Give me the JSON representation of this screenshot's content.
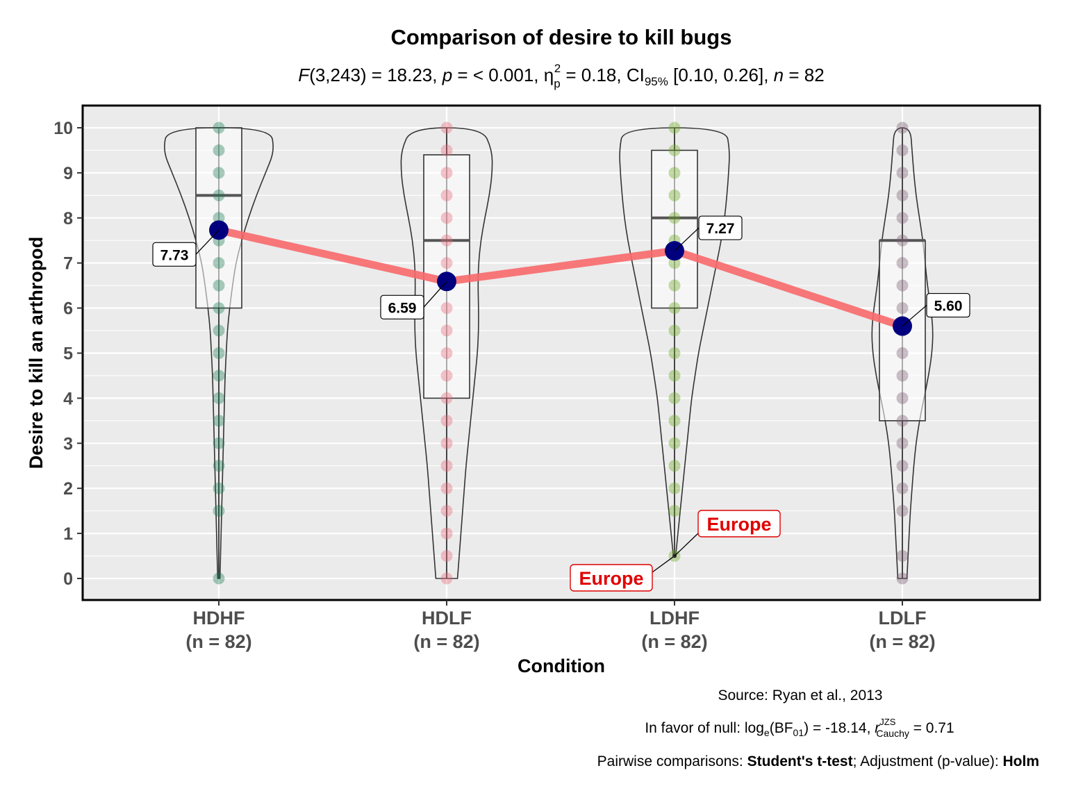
{
  "title": "Comparison of desire to kill bugs",
  "subtitle": {
    "F": "F",
    "df_stat": "(3,243) = 18.23, ",
    "p": "p",
    "p_val": " = < 0.001, ",
    "eta": "η",
    "eta_sub": "p",
    "eta_sup": "2",
    "eta_val": " = 0.18, CI",
    "ci_sub": "95%",
    "ci_val": " [0.10, 0.26], ",
    "n": "n",
    "n_val": " = 82"
  },
  "caption": {
    "source": "Source: Ryan et al., 2013",
    "bf_prefix": "In favor of null: log",
    "bf_sub_e": "e",
    "bf_mid": "(BF",
    "bf_sub_01": "01",
    "bf_val": ") = -18.14, ",
    "r": "r",
    "r_sup": "JZS",
    "r_sub": "Cauchy",
    "r_val": " = 0.71",
    "pw_prefix": "Pairwise comparisons: ",
    "pw_test": "Student's t-test",
    "pw_mid": "; Adjustment (p-value): ",
    "pw_adj": "Holm"
  },
  "chart_data": {
    "type": "violin-box",
    "xlabel": "Condition",
    "ylabel": "Desire to kill an arthropod",
    "ylim": [
      0,
      10
    ],
    "yticks": [
      0,
      1,
      2,
      3,
      4,
      5,
      6,
      7,
      8,
      9,
      10
    ],
    "grid": true,
    "categories": [
      {
        "name": "HDHF",
        "n_label": "(n = 82)",
        "color": "#1b7b55",
        "mean": 7.73,
        "mean_label": "7.73",
        "box": {
          "q1": 6.0,
          "median": 8.5,
          "q3": 10.0
        },
        "points": [
          0,
          1.5,
          2,
          2.5,
          3,
          3.5,
          4,
          4.5,
          5,
          5.5,
          6,
          6.5,
          7,
          7.5,
          8,
          8.5,
          9,
          9.5,
          10
        ],
        "density": [
          [
            0,
            0.02
          ],
          [
            0.5,
            0.03
          ],
          [
            1,
            0.04
          ],
          [
            1.5,
            0.05
          ],
          [
            2,
            0.06
          ],
          [
            2.5,
            0.07
          ],
          [
            3,
            0.08
          ],
          [
            3.5,
            0.09
          ],
          [
            4,
            0.1
          ],
          [
            4.5,
            0.11
          ],
          [
            5,
            0.13
          ],
          [
            5.5,
            0.15
          ],
          [
            6,
            0.19
          ],
          [
            6.5,
            0.24
          ],
          [
            7,
            0.3
          ],
          [
            7.5,
            0.4
          ],
          [
            8,
            0.52
          ],
          [
            8.5,
            0.66
          ],
          [
            9,
            0.82
          ],
          [
            9.5,
            0.98
          ],
          [
            10,
            0.9
          ]
        ]
      },
      {
        "name": "HDLF",
        "n_label": "(n = 82)",
        "color": "#e9677a",
        "mean": 6.59,
        "mean_label": "6.59",
        "box": {
          "q1": 4.0,
          "median": 7.5,
          "q3": 9.4
        },
        "points": [
          0,
          0.5,
          1,
          1.5,
          2,
          2.5,
          3,
          3.5,
          4,
          4.5,
          5,
          5.5,
          6,
          6.5,
          7,
          7.5,
          8,
          8.5,
          9,
          9.5,
          10
        ],
        "density": [
          [
            0,
            0.19
          ],
          [
            0.5,
            0.22
          ],
          [
            1,
            0.25
          ],
          [
            1.5,
            0.28
          ],
          [
            2,
            0.31
          ],
          [
            2.5,
            0.34
          ],
          [
            3,
            0.38
          ],
          [
            3.5,
            0.42
          ],
          [
            4,
            0.46
          ],
          [
            4.5,
            0.5
          ],
          [
            5,
            0.54
          ],
          [
            5.5,
            0.56
          ],
          [
            6,
            0.56
          ],
          [
            6.5,
            0.55
          ],
          [
            7,
            0.56
          ],
          [
            7.5,
            0.6
          ],
          [
            8,
            0.67
          ],
          [
            8.5,
            0.75
          ],
          [
            9,
            0.8
          ],
          [
            9.5,
            0.8
          ],
          [
            10,
            0.62
          ]
        ]
      },
      {
        "name": "LDHF",
        "n_label": "(n = 82)",
        "color": "#6aa61c",
        "mean": 7.27,
        "mean_label": "7.27",
        "box": {
          "q1": 6.0,
          "median": 8.0,
          "q3": 9.5
        },
        "points": [
          0.5,
          1.5,
          2,
          2.5,
          3,
          3.5,
          4,
          4.5,
          5,
          5.5,
          6,
          6.5,
          7,
          7.5,
          8,
          8.5,
          9,
          9.5,
          10
        ],
        "density": [
          [
            0.5,
            0.02
          ],
          [
            1,
            0.06
          ],
          [
            1.5,
            0.1
          ],
          [
            2,
            0.14
          ],
          [
            2.5,
            0.18
          ],
          [
            3,
            0.22
          ],
          [
            3.5,
            0.26
          ],
          [
            4,
            0.3
          ],
          [
            4.5,
            0.36
          ],
          [
            5,
            0.42
          ],
          [
            5.5,
            0.5
          ],
          [
            6,
            0.58
          ],
          [
            6.5,
            0.66
          ],
          [
            7,
            0.74
          ],
          [
            7.5,
            0.82
          ],
          [
            8,
            0.88
          ],
          [
            8.5,
            0.92
          ],
          [
            9,
            0.95
          ],
          [
            9.5,
            0.97
          ],
          [
            10,
            0.9
          ]
        ]
      },
      {
        "name": "LDLF",
        "n_label": "(n = 82)",
        "color": "#7a5d6e",
        "mean": 5.6,
        "mean_label": "5.60",
        "box": {
          "q1": 3.5,
          "median": 7.5,
          "q3": 7.5
        },
        "points": [
          0,
          0.5,
          1.5,
          2,
          2.5,
          3,
          3.5,
          4,
          4.5,
          5,
          5.5,
          6,
          6.5,
          7,
          7.5,
          8,
          8.5,
          9,
          9.5,
          10
        ],
        "density": [
          [
            0,
            0.08
          ],
          [
            0.5,
            0.1
          ],
          [
            1,
            0.12
          ],
          [
            1.5,
            0.14
          ],
          [
            2,
            0.17
          ],
          [
            2.5,
            0.2
          ],
          [
            3,
            0.24
          ],
          [
            3.5,
            0.3
          ],
          [
            4,
            0.38
          ],
          [
            4.5,
            0.46
          ],
          [
            5,
            0.52
          ],
          [
            5.5,
            0.54
          ],
          [
            6,
            0.5
          ],
          [
            6.5,
            0.44
          ],
          [
            7,
            0.4
          ],
          [
            7.5,
            0.36
          ],
          [
            8,
            0.3
          ],
          [
            8.5,
            0.24
          ],
          [
            9,
            0.2
          ],
          [
            9.5,
            0.17
          ],
          [
            10,
            0.14
          ]
        ]
      }
    ],
    "mean_line_color": "#f8696b",
    "mean_point_color": "#00007f",
    "outliers": [
      {
        "category": "LDHF",
        "value": 0.5,
        "label": "Europe",
        "side": "left"
      },
      {
        "category": "LDHF",
        "value": 0.5,
        "label": "Europe",
        "side": "right"
      }
    ]
  }
}
